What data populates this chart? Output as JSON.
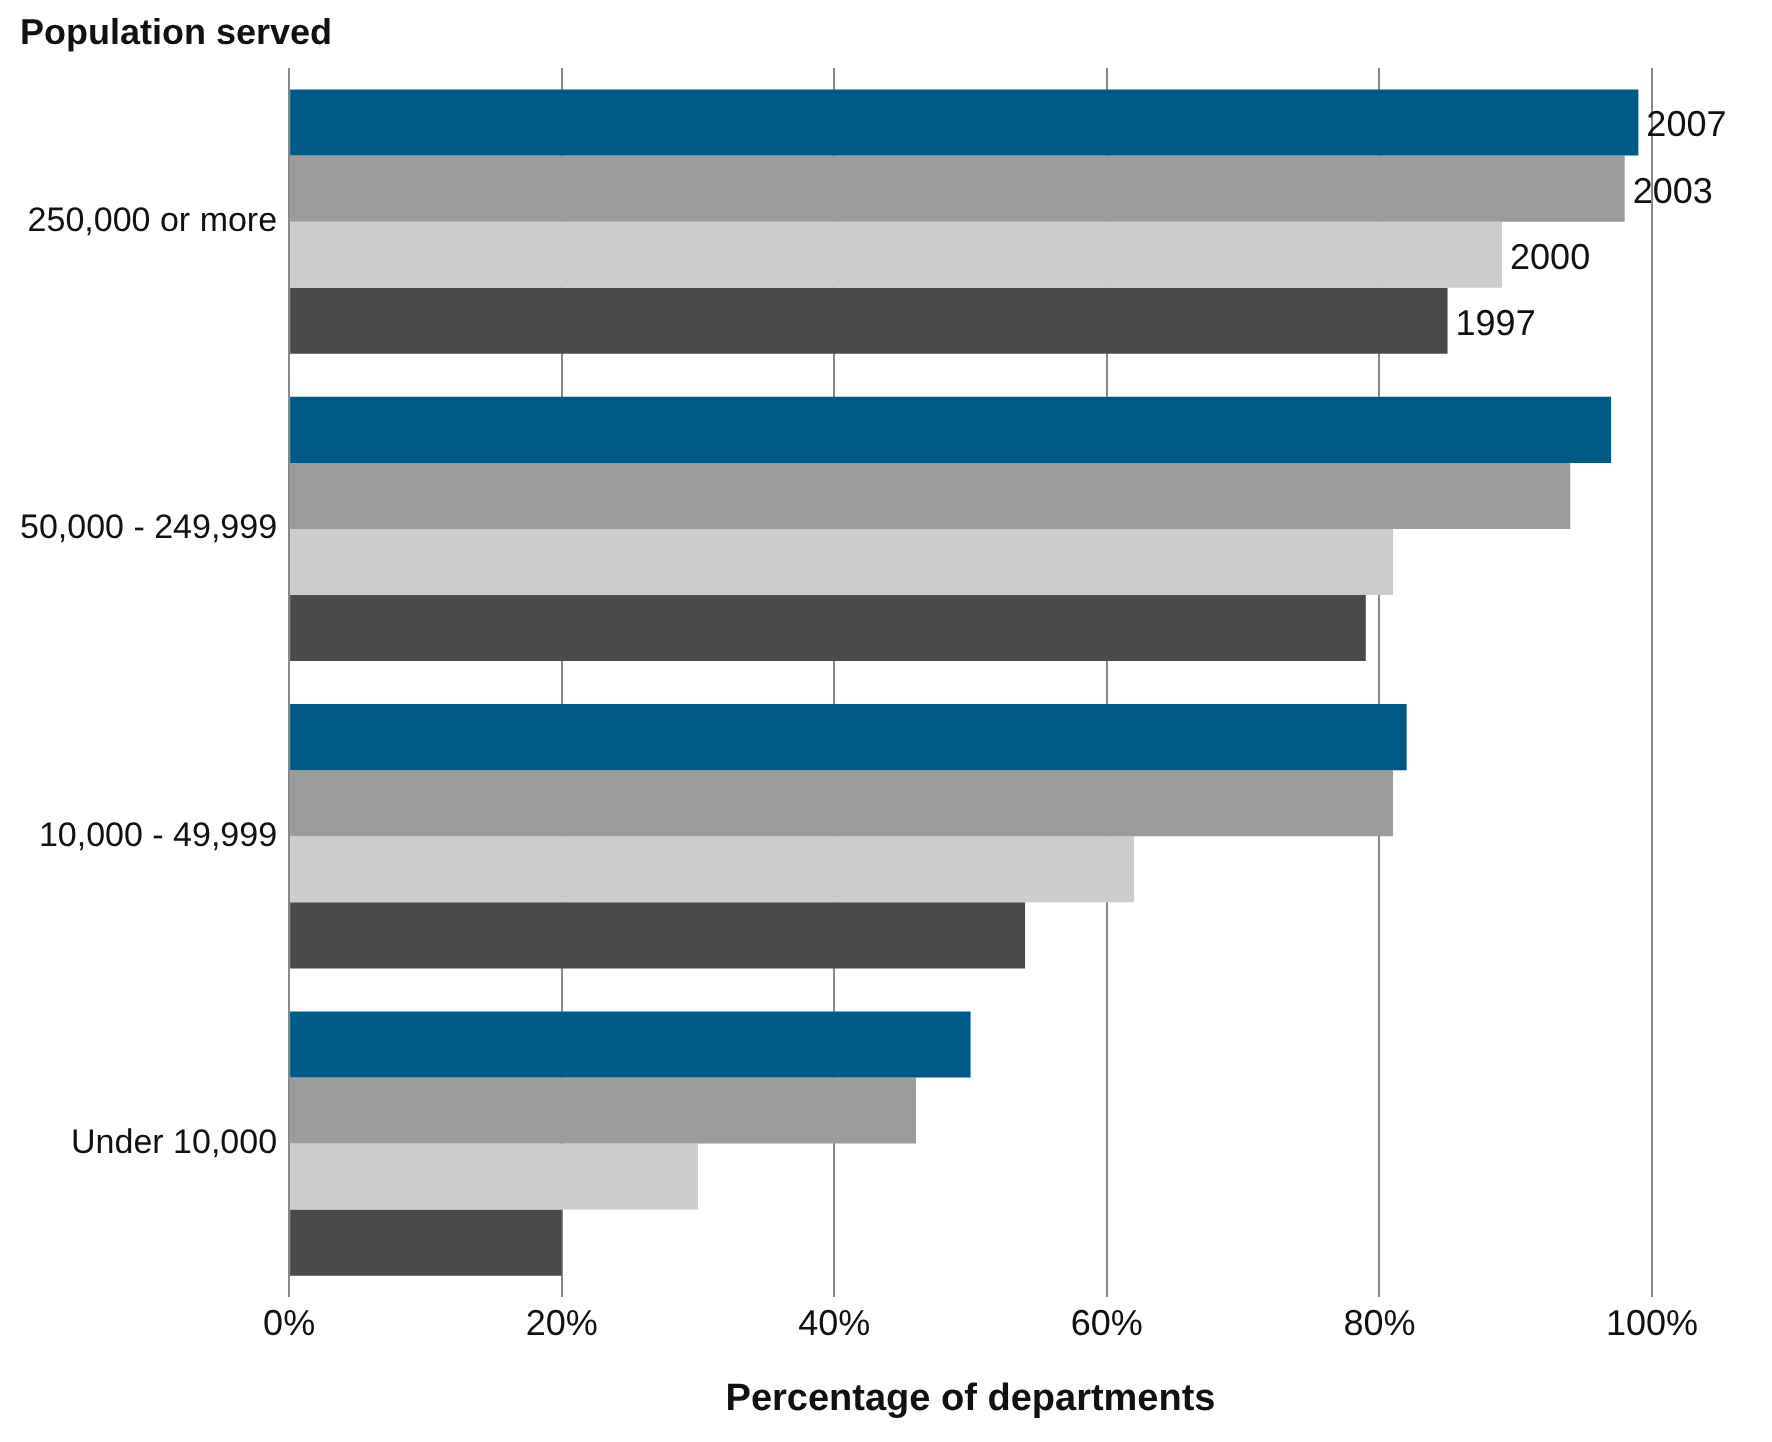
{
  "chart_data": {
    "type": "bar",
    "orientation": "horizontal",
    "ylabel": "Population served",
    "xlabel": "Percentage of departments",
    "categories": [
      "250,000 or more",
      "50,000 - 249,999",
      "10,000 - 49,999",
      "Under 10,000"
    ],
    "series": [
      {
        "name": "2007",
        "color": "#005a87",
        "values": [
          99,
          97,
          82,
          50
        ]
      },
      {
        "name": "2003",
        "color": "#9b9b9b",
        "values": [
          98,
          94,
          81,
          46
        ]
      },
      {
        "name": "2000",
        "color": "#cccccc",
        "values": [
          89,
          81,
          62,
          30
        ]
      },
      {
        "name": "1997",
        "color": "#4a4a4a",
        "values": [
          85,
          79,
          54,
          20
        ]
      }
    ],
    "xlim": [
      0,
      100
    ],
    "xticks": [
      {
        "value": 0,
        "label": "0%"
      },
      {
        "value": 20,
        "label": "20%"
      },
      {
        "value": 40,
        "label": "40%"
      },
      {
        "value": 60,
        "label": "60%"
      },
      {
        "value": 80,
        "label": "80%"
      },
      {
        "value": 100,
        "label": "100%"
      }
    ],
    "grid": "x",
    "legend": false
  }
}
